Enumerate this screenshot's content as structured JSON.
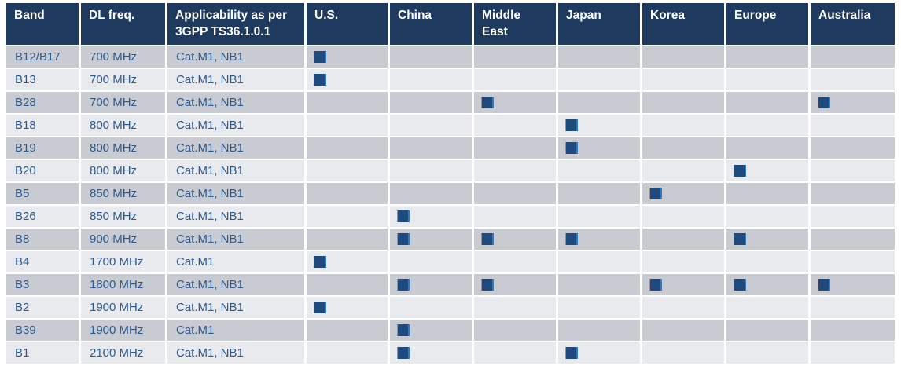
{
  "colors": {
    "header_bg": "#1e3a5f",
    "header_text": "#ffffff",
    "row_odd_bg": "#c9cbd3",
    "row_even_bg": "#e9eaee",
    "cell_text": "#2d5a8e",
    "marker_fill": "#1f4a7d",
    "marker_edge_light": "#2e7ac2",
    "marker_edge_dark": "#9b8d94"
  },
  "table": {
    "marker_symbol": "filled-square",
    "columns": [
      {
        "key": "band",
        "label": "Band"
      },
      {
        "key": "dl_freq",
        "label": "DL freq."
      },
      {
        "key": "applicability",
        "label": "Applicability as per 3GPP TS36.1.0.1"
      },
      {
        "key": "us",
        "label": "U.S."
      },
      {
        "key": "china",
        "label": "China"
      },
      {
        "key": "middle_east",
        "label": "Middle East"
      },
      {
        "key": "japan",
        "label": "Japan"
      },
      {
        "key": "korea",
        "label": "Korea"
      },
      {
        "key": "europe",
        "label": "Europe"
      },
      {
        "key": "australia",
        "label": "Australia"
      }
    ],
    "rows": [
      {
        "band": "B12/B17",
        "dl_freq": "700 MHz",
        "applicability": "Cat.M1, NB1",
        "markers": {
          "us": true,
          "china": false,
          "middle_east": false,
          "japan": false,
          "korea": false,
          "europe": false,
          "australia": false
        }
      },
      {
        "band": "B13",
        "dl_freq": "700 MHz",
        "applicability": "Cat.M1, NB1",
        "markers": {
          "us": true,
          "china": false,
          "middle_east": false,
          "japan": false,
          "korea": false,
          "europe": false,
          "australia": false
        }
      },
      {
        "band": "B28",
        "dl_freq": "700 MHz",
        "applicability": "Cat.M1, NB1",
        "markers": {
          "us": false,
          "china": false,
          "middle_east": true,
          "japan": false,
          "korea": false,
          "europe": false,
          "australia": true
        }
      },
      {
        "band": "B18",
        "dl_freq": "800 MHz",
        "applicability": "Cat.M1, NB1",
        "markers": {
          "us": false,
          "china": false,
          "middle_east": false,
          "japan": true,
          "korea": false,
          "europe": false,
          "australia": false
        }
      },
      {
        "band": "B19",
        "dl_freq": "800 MHz",
        "applicability": "Cat.M1, NB1",
        "markers": {
          "us": false,
          "china": false,
          "middle_east": false,
          "japan": true,
          "korea": false,
          "europe": false,
          "australia": false
        }
      },
      {
        "band": "B20",
        "dl_freq": "800 MHz",
        "applicability": "Cat.M1, NB1",
        "markers": {
          "us": false,
          "china": false,
          "middle_east": false,
          "japan": false,
          "korea": false,
          "europe": true,
          "australia": false
        }
      },
      {
        "band": "B5",
        "dl_freq": "850 MHz",
        "applicability": "Cat.M1, NB1",
        "markers": {
          "us": false,
          "china": false,
          "middle_east": false,
          "japan": false,
          "korea": true,
          "europe": false,
          "australia": false
        }
      },
      {
        "band": "B26",
        "dl_freq": "850 MHz",
        "applicability": "Cat.M1, NB1",
        "markers": {
          "us": false,
          "china": true,
          "middle_east": false,
          "japan": false,
          "korea": false,
          "europe": false,
          "australia": false
        }
      },
      {
        "band": "B8",
        "dl_freq": "900 MHz",
        "applicability": "Cat.M1, NB1",
        "markers": {
          "us": false,
          "china": true,
          "middle_east": true,
          "japan": true,
          "korea": false,
          "europe": true,
          "australia": false
        }
      },
      {
        "band": "B4",
        "dl_freq": "1700 MHz",
        "applicability": "Cat.M1",
        "markers": {
          "us": true,
          "china": false,
          "middle_east": false,
          "japan": false,
          "korea": false,
          "europe": false,
          "australia": false
        }
      },
      {
        "band": "B3",
        "dl_freq": "1800 MHz",
        "applicability": "Cat.M1, NB1",
        "markers": {
          "us": false,
          "china": true,
          "middle_east": true,
          "japan": false,
          "korea": true,
          "europe": true,
          "australia": true
        }
      },
      {
        "band": "B2",
        "dl_freq": "1900 MHz",
        "applicability": "Cat.M1, NB1",
        "markers": {
          "us": true,
          "china": false,
          "middle_east": false,
          "japan": false,
          "korea": false,
          "europe": false,
          "australia": false
        }
      },
      {
        "band": "B39",
        "dl_freq": "1900 MHz",
        "applicability": "Cat.M1",
        "markers": {
          "us": false,
          "china": true,
          "middle_east": false,
          "japan": false,
          "korea": false,
          "europe": false,
          "australia": false
        }
      },
      {
        "band": "B1",
        "dl_freq": "2100 MHz",
        "applicability": "Cat.M1, NB1",
        "markers": {
          "us": false,
          "china": true,
          "middle_east": false,
          "japan": true,
          "korea": false,
          "europe": false,
          "australia": false
        }
      }
    ]
  }
}
